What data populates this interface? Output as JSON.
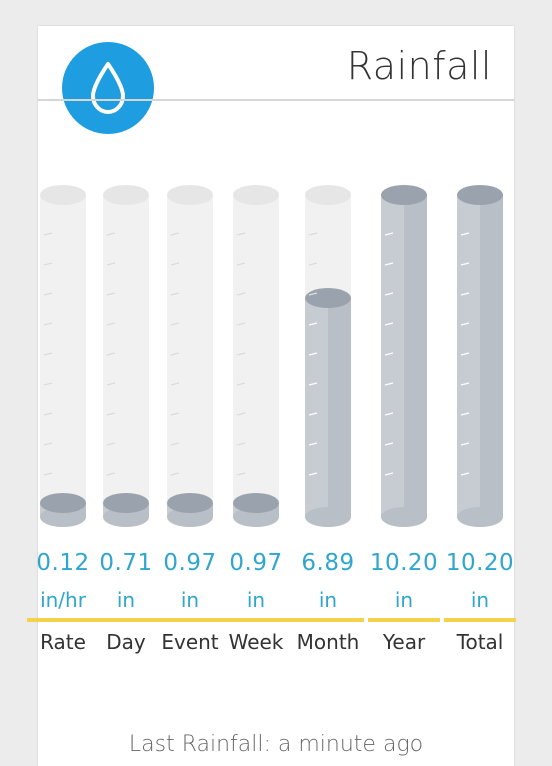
{
  "header": {
    "title": "Rainfall",
    "icon": "raindrop-icon"
  },
  "gauges": [
    {
      "key": "rate",
      "label": "Rate",
      "value": "0.12",
      "unit": "in/hr",
      "fill": 0.02
    },
    {
      "key": "day",
      "label": "Day",
      "value": "0.71",
      "unit": "in",
      "fill": 0.02
    },
    {
      "key": "event",
      "label": "Event",
      "value": "0.97",
      "unit": "in",
      "fill": 0.02
    },
    {
      "key": "week",
      "label": "Week",
      "value": "0.97",
      "unit": "in",
      "fill": 0.02
    },
    {
      "key": "month",
      "label": "Month",
      "value": "6.89",
      "unit": "in",
      "fill": 0.68
    },
    {
      "key": "year",
      "label": "Year",
      "value": "10.20",
      "unit": "in",
      "fill": 1.0
    },
    {
      "key": "total",
      "label": "Total",
      "value": "10.20",
      "unit": "in",
      "fill": 1.0
    }
  ],
  "footer": {
    "last_rainfall": "Last Rainfall: a minute ago"
  },
  "colors": {
    "accent": "#1e9ee0",
    "value_text": "#2fa6cf",
    "bar": "#f4d24c",
    "fill_body": "#c7ccd2",
    "fill_top": "#9aa3ad",
    "empty_body": "#f1f1f1"
  }
}
